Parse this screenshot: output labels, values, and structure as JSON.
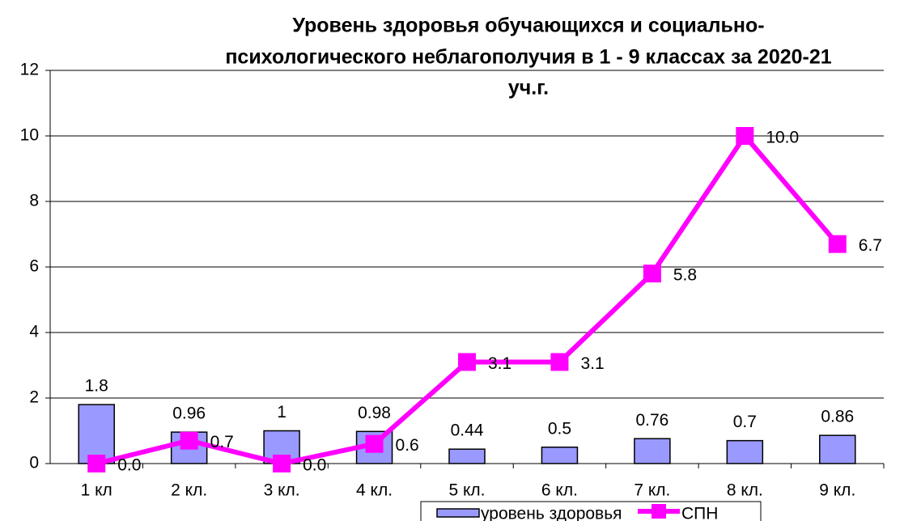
{
  "chart_data": {
    "type": "bar-line",
    "title": [
      "Уровень здоровья обучающихся и социально-",
      "психологического неблагополучия в 1 - 9 классах за 2020-21",
      "уч.г."
    ],
    "categories": [
      "1 кл",
      "2 кл.",
      "3 кл.",
      "4 кл.",
      "5 кл.",
      "6 кл.",
      "7 кл.",
      "8 кл.",
      "9 кл."
    ],
    "series": [
      {
        "name": "уровень здоровья",
        "type": "bar",
        "color": "#9999ff",
        "values": [
          1.8,
          0.96,
          1,
          0.98,
          0.44,
          0.5,
          0.76,
          0.7,
          0.86
        ]
      },
      {
        "name": "СПН",
        "type": "line",
        "color": "#ff00ff",
        "values": [
          0.0,
          0.7,
          0.0,
          0.6,
          3.1,
          3.1,
          5.8,
          10.0,
          6.7
        ],
        "value_labels": [
          "0.0",
          "0.7",
          "0.0",
          "0.6",
          "3.1",
          "3.1",
          "5.8",
          "10.0",
          "6.7"
        ]
      }
    ],
    "ylim": [
      0,
      12
    ],
    "yticks": [
      0,
      2,
      4,
      6,
      8,
      10,
      12
    ],
    "grid": true,
    "legend": "bottom"
  }
}
